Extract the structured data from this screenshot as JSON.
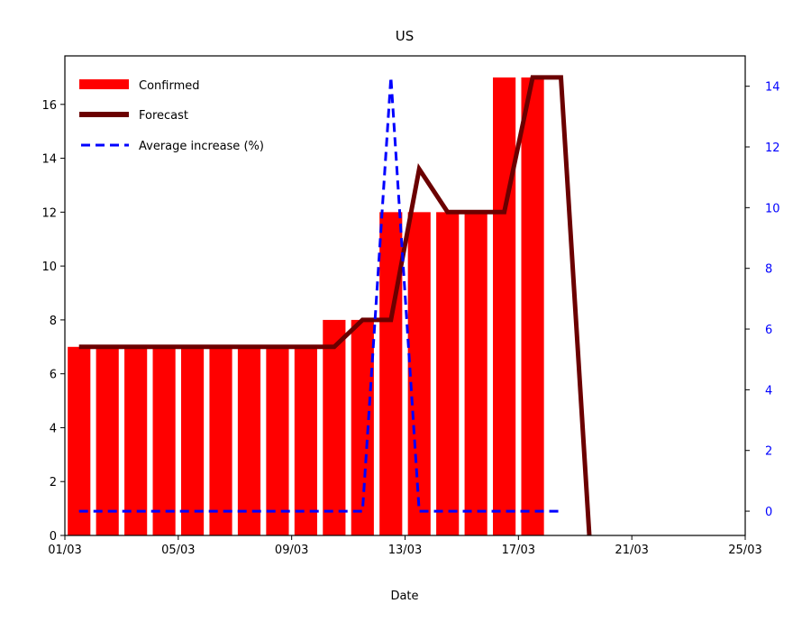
{
  "chart_data": {
    "type": "bar",
    "title": "US",
    "xlabel": "Date",
    "ylabel": "",
    "y2label": "",
    "x_tick_labels": [
      "01/03",
      "05/03",
      "09/03",
      "13/03",
      "17/03",
      "21/03",
      "25/03"
    ],
    "x_tick_positions_day": [
      0,
      4,
      8,
      12,
      16,
      20,
      24
    ],
    "xlim_day": [
      0,
      24
    ],
    "ylim": [
      0,
      17.8
    ],
    "y_ticks": [
      0,
      2,
      4,
      6,
      8,
      10,
      12,
      14,
      16
    ],
    "y2lim": [
      -0.8,
      15
    ],
    "y2_ticks": [
      0,
      2,
      4,
      6,
      8,
      10,
      12,
      14
    ],
    "legend_position": "upper-left",
    "grid": false,
    "series": [
      {
        "name": "Confirmed",
        "kind": "bar",
        "color": "#ff0000",
        "x_day": [
          0,
          1,
          2,
          3,
          4,
          5,
          6,
          7,
          8,
          9,
          10,
          11,
          12,
          13,
          14,
          15,
          16,
          17
        ],
        "values": [
          7,
          7,
          7,
          7,
          7,
          7,
          7,
          7,
          7,
          8,
          8,
          12,
          12,
          12,
          12,
          17,
          17,
          null
        ]
      },
      {
        "name": "Forecast",
        "kind": "line",
        "color": "#6b0000",
        "x_day": [
          0,
          1,
          2,
          3,
          4,
          5,
          6,
          7,
          8,
          9,
          10,
          11,
          12,
          13,
          14,
          15,
          16,
          17,
          18
        ],
        "values": [
          7,
          7,
          7,
          7,
          7,
          7,
          7,
          7,
          7,
          7,
          8,
          8,
          13.6,
          12,
          12,
          12,
          17,
          17,
          0
        ]
      },
      {
        "name": "Average increase (%)",
        "kind": "line",
        "style": "dashed",
        "axis": "right",
        "color": "#0000ff",
        "x_day": [
          0,
          1,
          2,
          3,
          4,
          5,
          6,
          7,
          8,
          9,
          10,
          11,
          12,
          13,
          14,
          15,
          16,
          17
        ],
        "values": [
          0,
          0,
          0,
          0,
          0,
          0,
          0,
          0,
          0,
          0,
          0,
          14.3,
          0,
          0,
          0,
          0,
          0,
          0
        ]
      }
    ]
  }
}
